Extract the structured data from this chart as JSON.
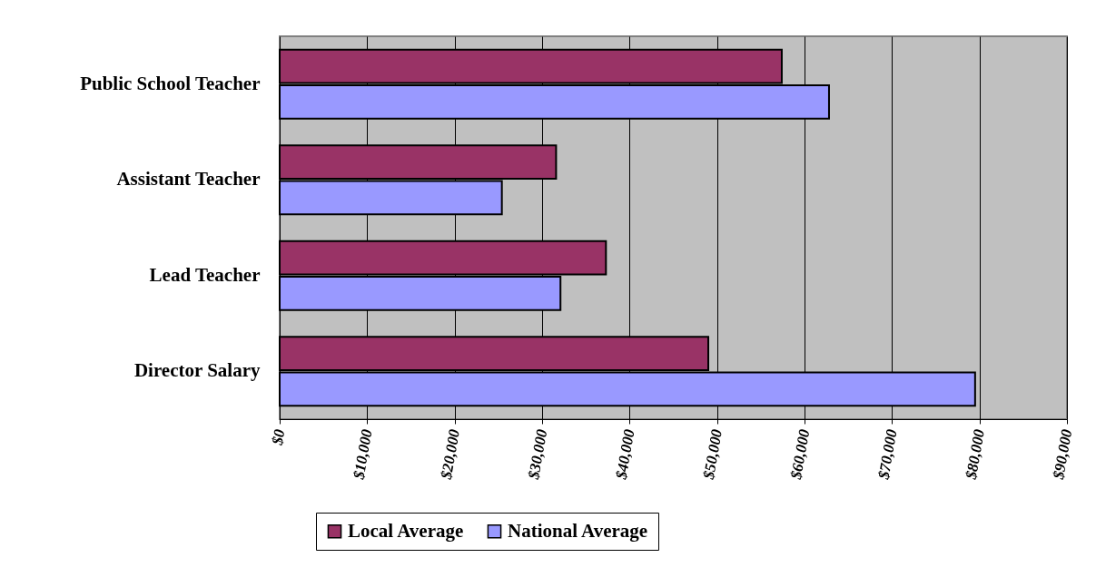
{
  "chart_data": {
    "type": "bar",
    "orientation": "horizontal",
    "categories": [
      "Public School Teacher",
      "Assistant Teacher",
      "Lead Teacher",
      "Director Salary"
    ],
    "series": [
      {
        "name": "Local Average",
        "color": "#993366",
        "values": [
          57400,
          31600,
          37300,
          49000
        ]
      },
      {
        "name": "National Average",
        "color": "#9999ff",
        "values": [
          62800,
          25400,
          32100,
          79500
        ]
      }
    ],
    "xlim": [
      0,
      90000
    ],
    "xticks": [
      {
        "value": 0,
        "label": "$0"
      },
      {
        "value": 10000,
        "label": "$10,000"
      },
      {
        "value": 20000,
        "label": "$20,000"
      },
      {
        "value": 30000,
        "label": "$30,000"
      },
      {
        "value": 40000,
        "label": "$40,000"
      },
      {
        "value": 50000,
        "label": "$50,000"
      },
      {
        "value": 60000,
        "label": "$60,000"
      },
      {
        "value": 70000,
        "label": "$70,000"
      },
      {
        "value": 80000,
        "label": "$80,000"
      },
      {
        "value": 90000,
        "label": "$90,000"
      }
    ],
    "grid": "x",
    "legend": "bottom"
  }
}
